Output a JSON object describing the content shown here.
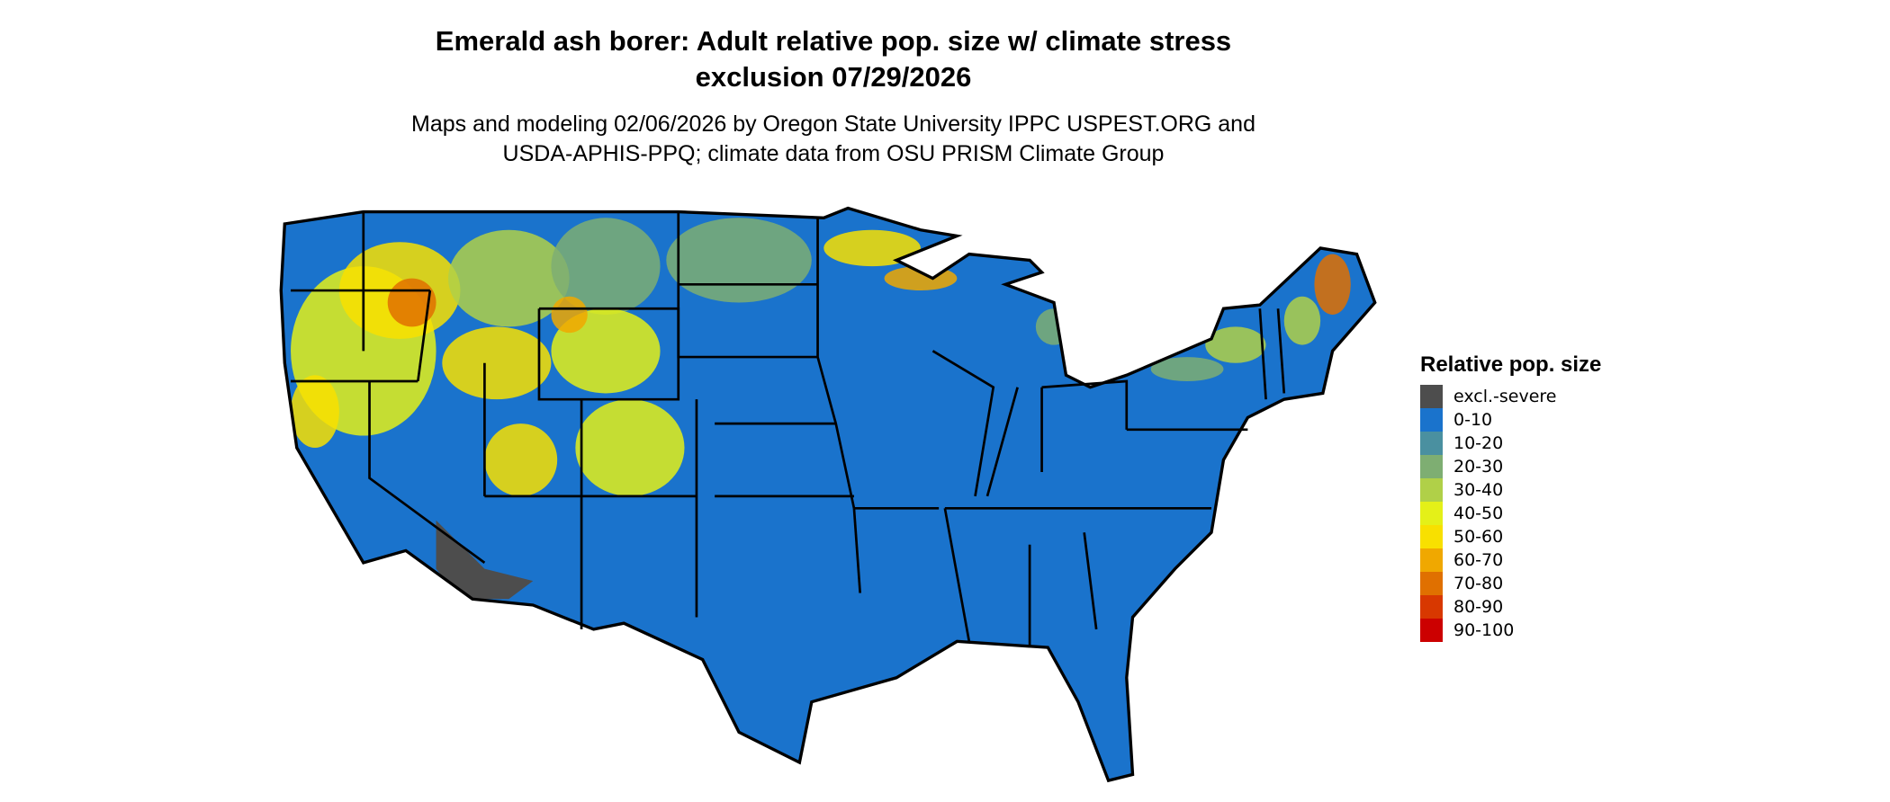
{
  "title_line1": "Emerald ash borer: Adult relative pop. size w/ climate stress",
  "title_line2": "exclusion 07/29/2026",
  "subtitle_line1": "Maps and modeling 02/06/2026 by Oregon State University IPPC USPEST.ORG and",
  "subtitle_line2": "USDA-APHIS-PPQ; climate data from OSU PRISM Climate Group",
  "map": {
    "region": "Contiguous United States",
    "background_class_color": "#1a73cc"
  },
  "legend": {
    "title": "Relative pop. size",
    "items": [
      {
        "label": "excl.-severe",
        "color": "#4d4d4d"
      },
      {
        "label": "0-10",
        "color": "#1a73cc"
      },
      {
        "label": "10-20",
        "color": "#4a90a0"
      },
      {
        "label": "20-30",
        "color": "#7eae72"
      },
      {
        "label": "30-40",
        "color": "#b0d048"
      },
      {
        "label": "40-50",
        "color": "#e4f018"
      },
      {
        "label": "50-60",
        "color": "#f8e000"
      },
      {
        "label": "60-70",
        "color": "#f0a800"
      },
      {
        "label": "70-80",
        "color": "#e07000"
      },
      {
        "label": "80-90",
        "color": "#d83800"
      },
      {
        "label": "90-100",
        "color": "#cc0000"
      }
    ]
  }
}
